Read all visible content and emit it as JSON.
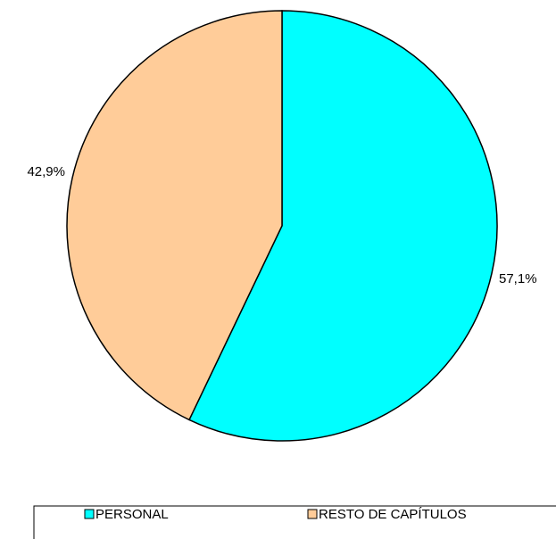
{
  "chart_data": {
    "type": "pie",
    "categories": [
      "PERSONAL",
      "RESTO DE CAPÍTULOS"
    ],
    "values": [
      57.1,
      42.9
    ],
    "value_labels": [
      "57,1%",
      "42,9%"
    ],
    "colors": [
      "#00ffff",
      "#ffcc99"
    ],
    "legend": "bottom"
  }
}
